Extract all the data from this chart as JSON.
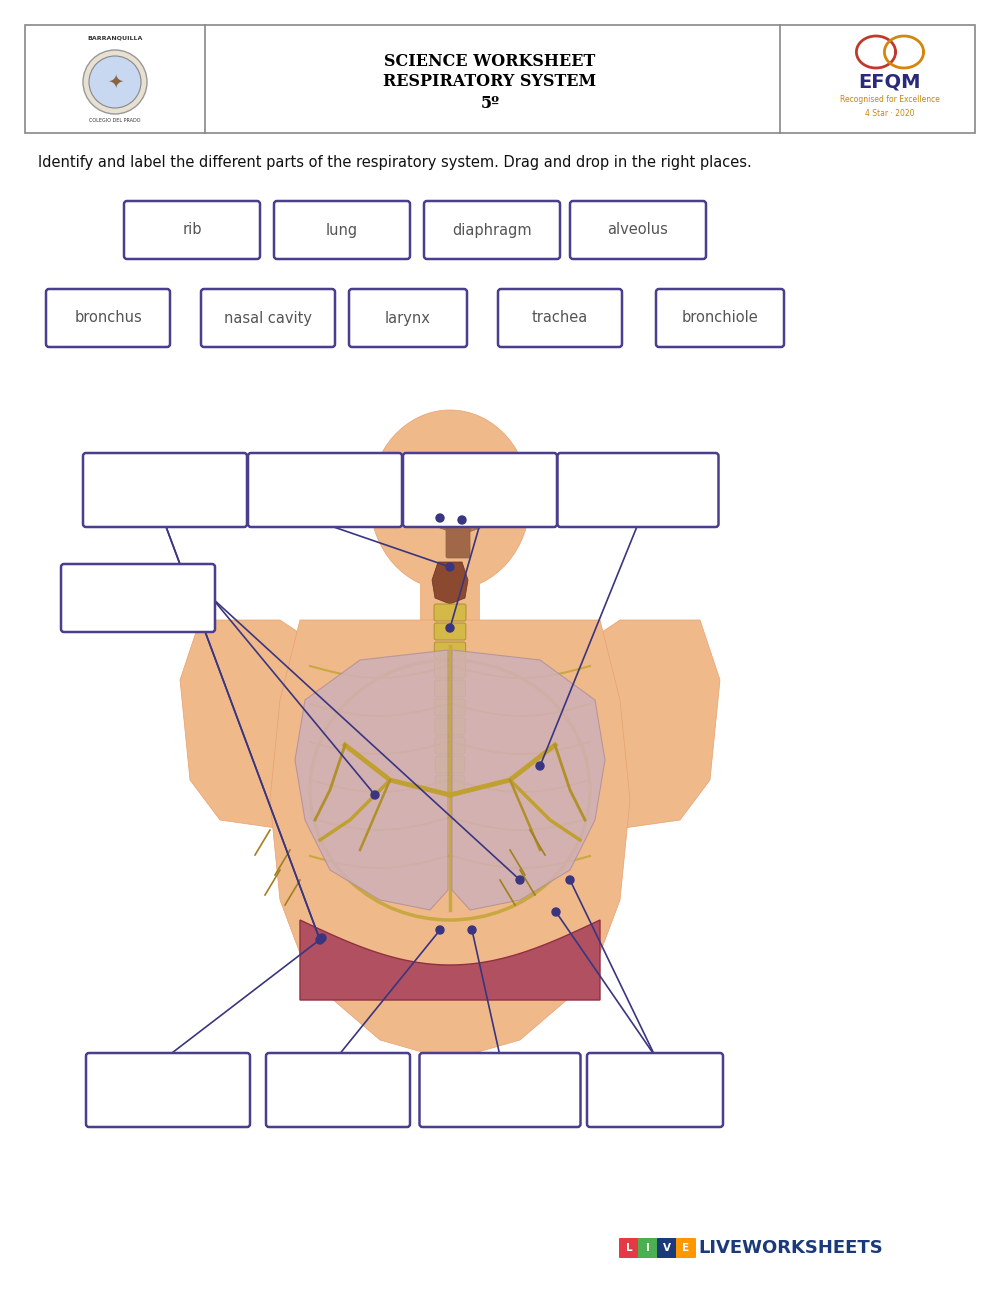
{
  "title_line1": "SCIENCE WORKSHEET",
  "title_line2": "RESPIRATORY SYSTEM",
  "title_line3": "5º",
  "instruction": "Identify and label the different parts of the respiratory system. Drag and drop in the right places.",
  "word_bank_row1": [
    "rib",
    "lung",
    "diaphragm",
    "alveolus"
  ],
  "word_bank_row2": [
    "bronchus",
    "nasal cavity",
    "larynx",
    "trachea",
    "bronchiole"
  ],
  "box_color": "#4a3f8f",
  "bg_color": "white",
  "header_border": "#888888",
  "figure_width": 10.0,
  "figure_height": 12.91,
  "skin_color": "#f0b98a",
  "skin_dark": "#e8a070",
  "lung_color": "#d4b0b8",
  "lung_edge": "#c09098",
  "bronchi_color": "#c8a840",
  "trachea_color": "#d4b848",
  "nasal_color": "#b07860",
  "larynx_color": "#8b4a30",
  "diaphragm_color": "#b05860",
  "dot_color": "#3a3580",
  "line_color": "#3a3580",
  "lw_red": "#e63946",
  "lw_blue": "#1a3a7a",
  "lw_green": "#4CAF50",
  "lw_orange": "#FF9800",
  "lw_yellow": "#FFD700"
}
